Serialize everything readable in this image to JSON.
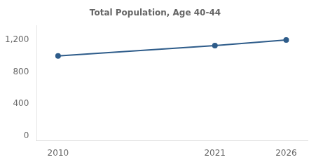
{
  "chart_data": {
    "type": "line",
    "title": "Total Population, Age 40-44",
    "x": [
      2010,
      2021,
      2026
    ],
    "values": [
      1000,
      1130,
      1200
    ],
    "color": "#2e5c8a",
    "marker": "circle",
    "xlim": [
      2008.5,
      2027.5
    ],
    "xticks": [
      2010,
      2021,
      2026
    ],
    "ylim": [
      -60,
      1380
    ],
    "yticks": [
      0,
      400,
      800,
      {
        "value": 1200,
        "label": "1,200"
      }
    ],
    "grid": false
  }
}
